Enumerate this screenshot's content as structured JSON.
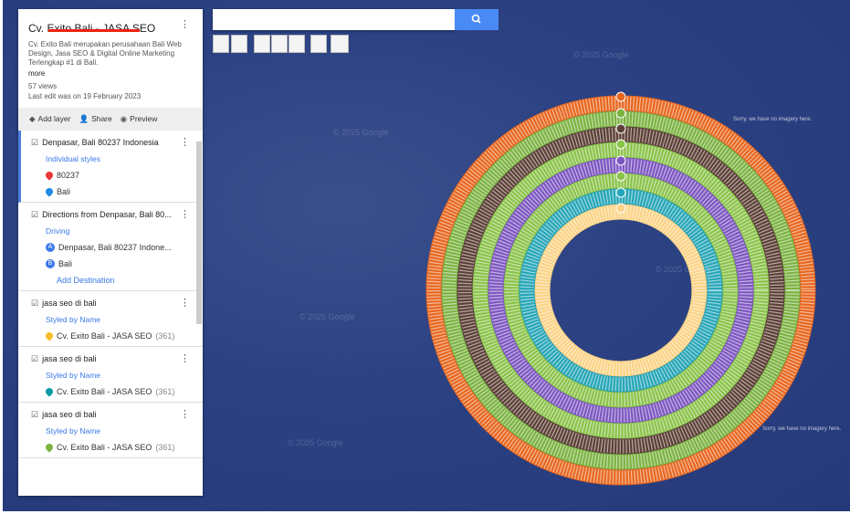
{
  "map": {
    "title": "Cv. Exito Bali - JASA SEO",
    "description": "Cv. Exito Bali merupakan perusahaan Bali Web Design, Jasa SEO & Digital Online Marketing Terlengkap #1 di Bali.",
    "more": "more",
    "views": "57 views",
    "last_edit": "Last edit was on 19 February 2023"
  },
  "actions": [
    "Add layer",
    "Share",
    "Preview"
  ],
  "layers": [
    {
      "name": "Denpasar, Bali 80237 Indonesia",
      "style": "Individual styles",
      "items": [
        {
          "text": "80237"
        },
        {
          "text": "Bali"
        }
      ]
    },
    {
      "name": "Directions from Denpasar, Bali 80...",
      "style": "Driving",
      "items": [
        {
          "marker": "A",
          "text": "Denpasar, Bali 80237 Indone..."
        },
        {
          "marker": "B",
          "text": "Bali"
        }
      ],
      "extra": "Add Destination"
    },
    {
      "name": "jasa seo di bali",
      "style": "Styled by Name",
      "items": [
        {
          "text": "Cv. Exito Bali - JASA SEO",
          "count": "(361)"
        }
      ]
    },
    {
      "name": "jasa seo di bali",
      "style": "Styled by Name",
      "items": [
        {
          "text": "Cv. Exito Bali - JASA SEO",
          "count": "(361)"
        }
      ]
    },
    {
      "name": "jasa seo di bali",
      "style": "Styled by Name",
      "items": [
        {
          "text": "Cv. Exito Bali - JASA SEO",
          "count": "(361)"
        }
      ]
    }
  ],
  "watermarks": [
    "© 2025 Google",
    "Sorry, we have no imagery here."
  ]
}
